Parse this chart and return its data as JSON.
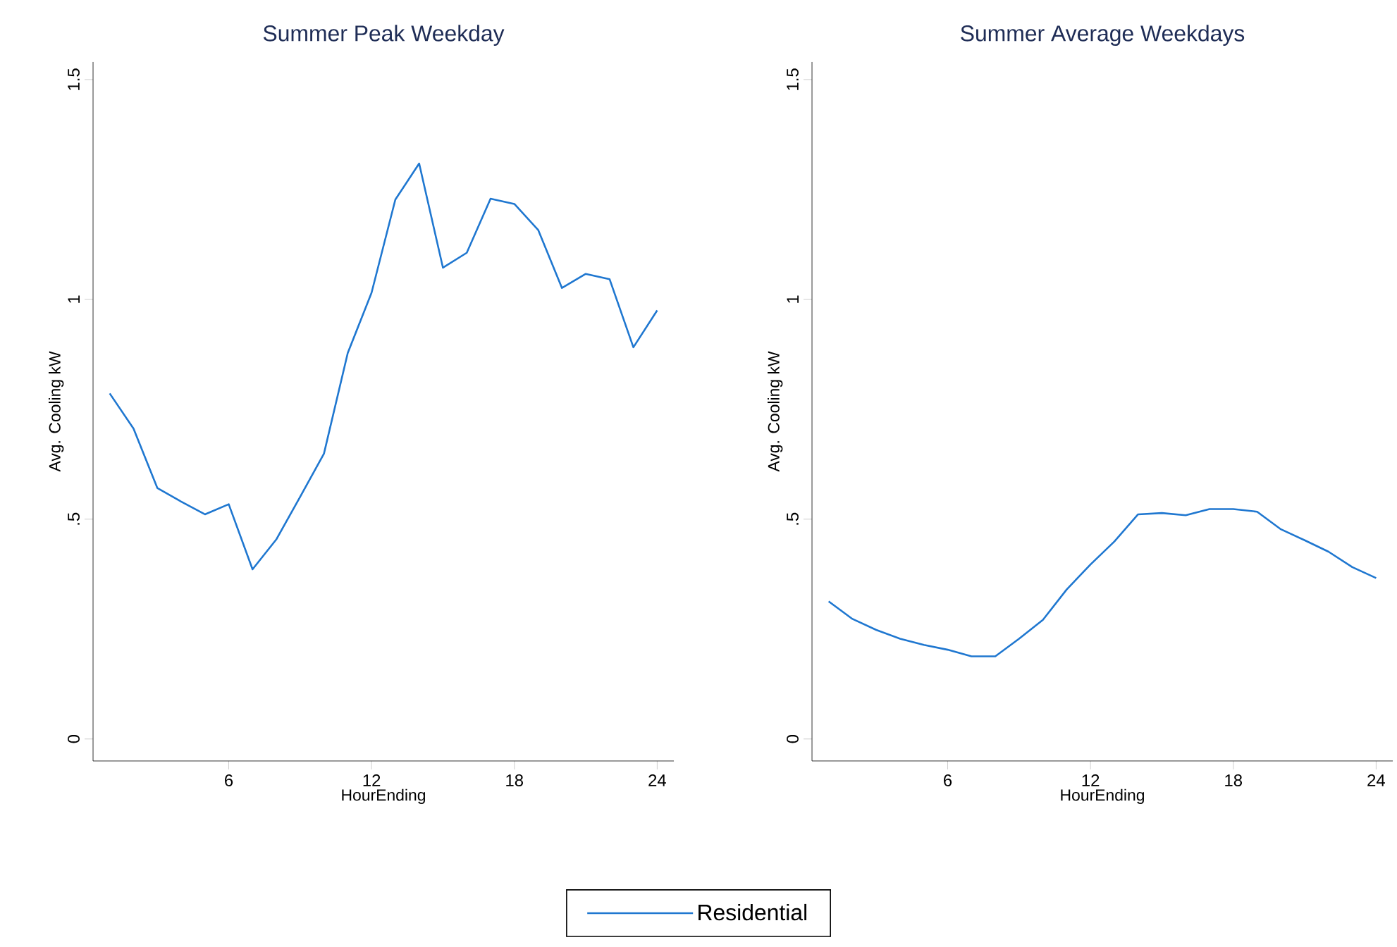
{
  "chart_data": [
    {
      "type": "line",
      "title": "Summer Peak Weekday",
      "xlabel": "HourEnding",
      "ylabel": "Avg. Cooling kW",
      "x": [
        1,
        2,
        3,
        4,
        5,
        6,
        7,
        8,
        9,
        10,
        11,
        12,
        13,
        14,
        15,
        16,
        17,
        18,
        19,
        20,
        21,
        22,
        23,
        24
      ],
      "xlim": [
        0.3,
        24.7
      ],
      "ylim": [
        -0.05,
        1.54
      ],
      "xticks": [
        6,
        12,
        18,
        24
      ],
      "yticks": [
        0,
        {
          "value": 0.5,
          "label": ".5"
        },
        1,
        1.5
      ],
      "legend": "bottom",
      "series": [
        {
          "name": "Residential",
          "color": "#1f77d0",
          "values": [
            0.786,
            0.706,
            0.571,
            0.54,
            0.511,
            0.534,
            0.386,
            0.454,
            0.551,
            0.649,
            0.878,
            1.015,
            1.227,
            1.309,
            1.072,
            1.106,
            1.229,
            1.217,
            1.158,
            1.026,
            1.058,
            1.046,
            0.891,
            0.975
          ]
        }
      ]
    },
    {
      "type": "line",
      "title": "Summer Average Weekdays",
      "xlabel": "HourEnding",
      "ylabel": "Avg. Cooling kW",
      "x": [
        1,
        2,
        3,
        4,
        5,
        6,
        7,
        8,
        9,
        10,
        11,
        12,
        13,
        14,
        15,
        16,
        17,
        18,
        19,
        20,
        21,
        22,
        23,
        24
      ],
      "xlim": [
        0.3,
        24.7
      ],
      "ylim": [
        -0.05,
        1.54
      ],
      "xticks": [
        6,
        12,
        18,
        24
      ],
      "yticks": [
        0,
        {
          "value": 0.5,
          "label": ".5"
        },
        1,
        1.5
      ],
      "series": [
        {
          "color": "#1f77d0",
          "values": [
            0.313,
            0.273,
            0.248,
            0.228,
            0.214,
            0.203,
            0.188,
            0.188,
            0.228,
            0.271,
            0.34,
            0.397,
            0.449,
            0.511,
            0.514,
            0.509,
            0.523,
            0.523,
            0.517,
            0.477,
            0.452,
            0.426,
            0.391,
            0.366
          ]
        }
      ]
    }
  ]
}
